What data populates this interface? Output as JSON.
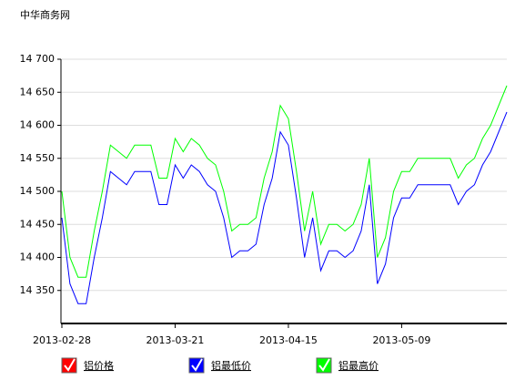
{
  "chart_data": {
    "type": "line",
    "title": "中华商务网",
    "categories": [
      "2013-02-28",
      null,
      null,
      null,
      null,
      null,
      null,
      null,
      null,
      null,
      null,
      null,
      null,
      null,
      "2013-03-21",
      null,
      null,
      null,
      null,
      null,
      null,
      null,
      null,
      null,
      null,
      null,
      null,
      null,
      "2013-04-15",
      null,
      null,
      null,
      null,
      null,
      null,
      null,
      null,
      null,
      null,
      null,
      null,
      null,
      "2013-05-09",
      null,
      null,
      null,
      null,
      null,
      null,
      null,
      null,
      null,
      null,
      null,
      null,
      null
    ],
    "legend": [
      {
        "name": "铝价格",
        "color": "#ff0000"
      }
    ],
    "series": [
      {
        "name": "铝最低价",
        "color": "#0000ff",
        "values": [
          14460,
          14360,
          14330,
          14330,
          14400,
          14460,
          14530,
          14520,
          14510,
          14530,
          14530,
          14530,
          14480,
          14480,
          14540,
          14520,
          14540,
          14530,
          14510,
          14500,
          14460,
          14400,
          14410,
          14410,
          14420,
          14480,
          14520,
          14590,
          14570,
          14490,
          14400,
          14460,
          14380,
          14410,
          14410,
          14400,
          14410,
          14440,
          14510,
          14360,
          14390,
          14460,
          14490,
          14490,
          14510,
          14510,
          14510,
          14510,
          14510,
          14480,
          14500,
          14510,
          14540,
          14560,
          14590,
          14620
        ]
      },
      {
        "name": "铝最高价",
        "color": "#00ff00",
        "values": [
          14500,
          14400,
          14370,
          14370,
          14440,
          14500,
          14570,
          14560,
          14550,
          14570,
          14570,
          14570,
          14520,
          14520,
          14580,
          14560,
          14580,
          14570,
          14550,
          14540,
          14500,
          14440,
          14450,
          14450,
          14460,
          14520,
          14560,
          14630,
          14610,
          14530,
          14440,
          14500,
          14420,
          14450,
          14450,
          14440,
          14450,
          14480,
          14550,
          14400,
          14430,
          14500,
          14530,
          14530,
          14550,
          14550,
          14550,
          14550,
          14550,
          14520,
          14540,
          14550,
          14580,
          14600,
          14630,
          14660
        ]
      }
    ],
    "ylim": [
      14300,
      14700
    ],
    "yticks": [
      {
        "value": 14350,
        "label": "14 350"
      },
      {
        "value": 14400,
        "label": "14 400"
      },
      {
        "value": 14450,
        "label": "14 450"
      },
      {
        "value": 14500,
        "label": "14 500"
      },
      {
        "value": 14550,
        "label": "14 550"
      },
      {
        "value": 14600,
        "label": "14 600"
      },
      {
        "value": 14650,
        "label": "14 650"
      },
      {
        "value": 14700,
        "label": "14 700"
      }
    ],
    "grid": true
  }
}
